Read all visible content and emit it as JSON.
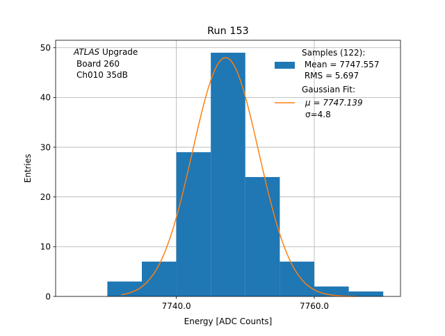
{
  "chart_data": {
    "type": "bar",
    "title": "Run 153",
    "xlabel": "Energy [ADC Counts]",
    "ylabel": "Entries",
    "xlim": [
      7722.5,
      7772.5
    ],
    "ylim": [
      0,
      51.5
    ],
    "grid": true,
    "x_ticks": [
      {
        "value": 7740,
        "label": "7740.0"
      },
      {
        "value": 7760,
        "label": "7760.0"
      }
    ],
    "y_ticks": [
      {
        "value": 0,
        "label": "0"
      },
      {
        "value": 10,
        "label": "10"
      },
      {
        "value": 20,
        "label": "20"
      },
      {
        "value": 30,
        "label": "30"
      },
      {
        "value": 40,
        "label": "40"
      },
      {
        "value": 50,
        "label": "50"
      }
    ],
    "histogram": {
      "bin_edges": [
        7730,
        7735,
        7740,
        7745,
        7750,
        7755,
        7760,
        7765,
        7770
      ],
      "counts": [
        3,
        7,
        29,
        49,
        24,
        7,
        2,
        1
      ],
      "color": "#1f77b4"
    },
    "fit": {
      "type": "gaussian",
      "amplitude": 48,
      "mu": 7747.139,
      "sigma": 4.8,
      "x_range": [
        7732,
        7766
      ],
      "color": "#ff7f0e"
    },
    "annotation_lines": [
      "ATLAS Upgrade",
      "Board 260",
      "Ch010 35dB"
    ],
    "annotation_italic_word": "ATLAS",
    "annotation_rest": " Upgrade",
    "legend": {
      "position": "top-right",
      "samples_lines": [
        "Samples (122):",
        " Mean = 7747.557",
        " RMS = 5.697"
      ],
      "fit_lines": [
        "Gaussian Fit:",
        "μ = 7747.139",
        "σ=4.8"
      ]
    }
  }
}
